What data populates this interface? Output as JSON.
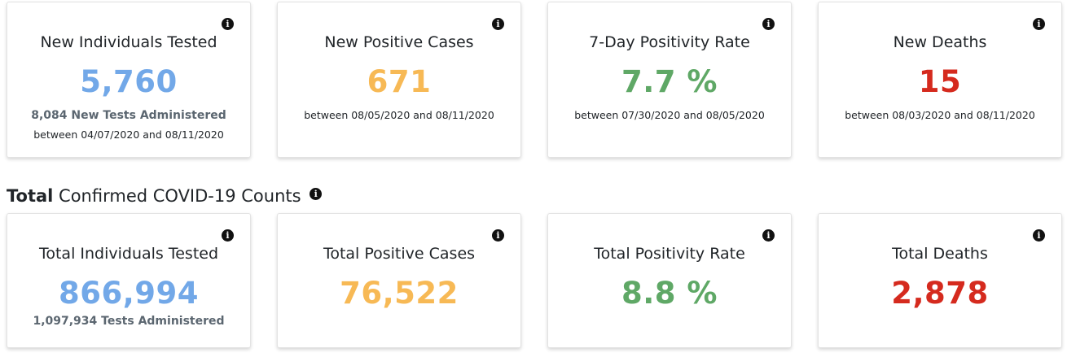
{
  "new_counts": [
    {
      "title": "New Individuals Tested",
      "value": "5,760",
      "sub": "8,084 New Tests Administered",
      "range": "between 04/07/2020 and 08/11/2020"
    },
    {
      "title": "New Positive Cases",
      "value": "671",
      "range": "between 08/05/2020 and 08/11/2020"
    },
    {
      "title": "7-Day Positivity Rate",
      "value": "7.7 %",
      "range": "between 07/30/2020 and 08/05/2020"
    },
    {
      "title": "New Deaths",
      "value": "15",
      "range": "between 08/03/2020 and 08/11/2020"
    }
  ],
  "total_section": {
    "bold": "Total",
    "rest": " Confirmed COVID-19 Counts"
  },
  "total_counts": [
    {
      "title": "Total Individuals Tested",
      "value": "866,994",
      "sub": "1,097,934 Tests Administered"
    },
    {
      "title": "Total Positive Cases",
      "value": "76,522"
    },
    {
      "title": "Total Positivity Rate",
      "value": "8.8 %"
    },
    {
      "title": "Total Deaths",
      "value": "2,878"
    }
  ],
  "info_glyph": "i",
  "colors": {
    "tested": "#72a8e8",
    "cases": "#f7b955",
    "positivity": "#5fa866",
    "deaths": "#d52a1e"
  }
}
